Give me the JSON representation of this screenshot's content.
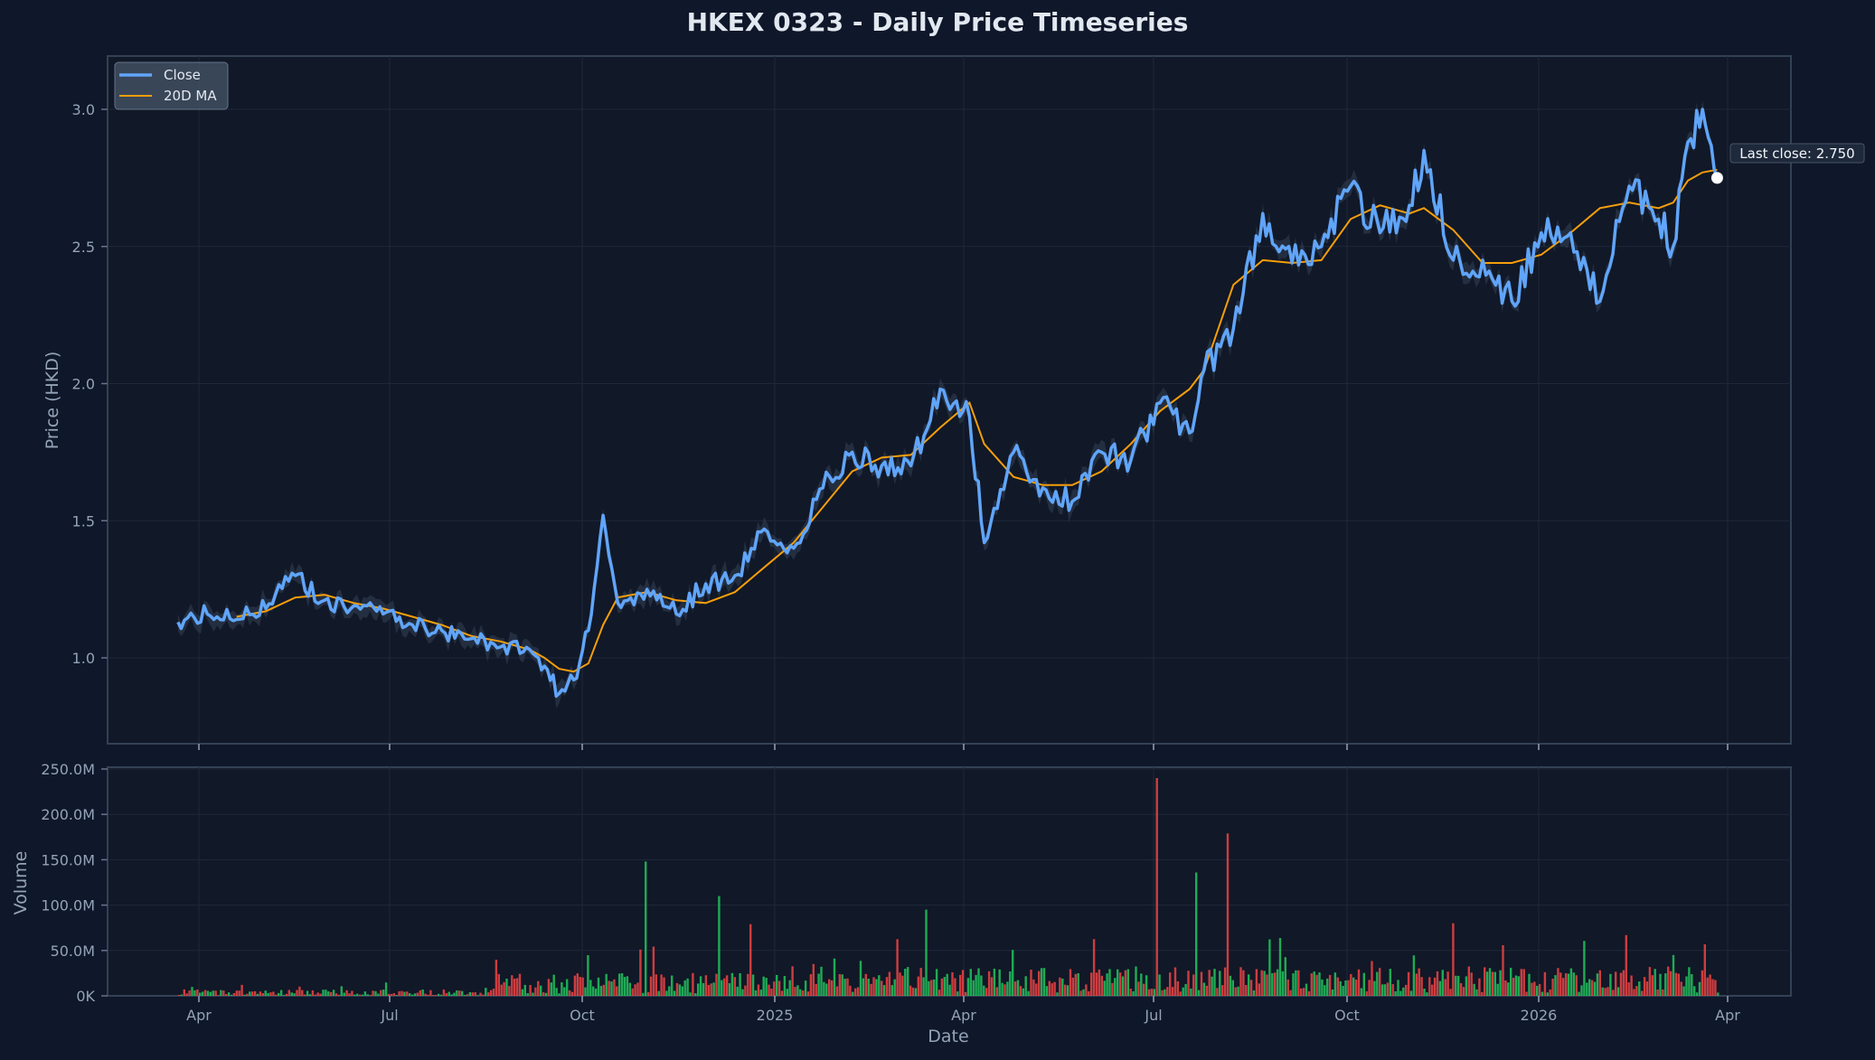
{
  "title": "HKEX 0323 - Daily Price Timeseries",
  "colors": {
    "background": "#0f172a",
    "plot_bg": "#111827",
    "close": "#60a5fa",
    "ma": "#f59e0b",
    "band": "#334155",
    "vol_up": "#22c55e",
    "vol_down": "#ef4444",
    "grid": "#1e293b",
    "spine": "#334155"
  },
  "legend": {
    "close_label": "Close",
    "ma_label": "20D MA"
  },
  "annotation": {
    "label": "Last close: 2.750"
  },
  "price_axis": {
    "label": "Price (HKD)",
    "ticks": [
      "1.0",
      "1.5",
      "2.0",
      "2.5",
      "3.0"
    ]
  },
  "volume_axis": {
    "label": "Volume",
    "ticks": [
      "0K",
      "50.0M",
      "100.0M",
      "150.0M",
      "200.0M",
      "250.0M"
    ]
  },
  "x_axis": {
    "label": "Date",
    "ticks": [
      "Apr",
      "Jul",
      "Oct",
      "2025",
      "Apr",
      "Jul",
      "Oct",
      "2026",
      "Apr"
    ]
  },
  "chart_data": [
    {
      "type": "line",
      "title": "HKEX 0323 - Daily Price Timeseries",
      "xlabel": "Date",
      "ylabel": "Price (HKD)",
      "ylim": [
        0.69,
        3.2
      ],
      "x_ticks": [
        "Apr 2024",
        "Jul 2024",
        "Oct 2024",
        "2025",
        "Apr 2025",
        "Jul 2025",
        "Oct 2025",
        "2026",
        "Apr 2026"
      ],
      "legend_position": "upper left",
      "grid": true,
      "x": [
        "2024-03-22",
        "2024-04-05",
        "2024-04-19",
        "2024-05-03",
        "2024-05-17",
        "2024-05-31",
        "2024-06-14",
        "2024-06-28",
        "2024-07-12",
        "2024-07-26",
        "2024-08-09",
        "2024-08-23",
        "2024-09-06",
        "2024-09-13",
        "2024-09-20",
        "2024-09-27",
        "2024-10-04",
        "2024-10-11",
        "2024-10-18",
        "2024-11-01",
        "2024-11-15",
        "2024-11-29",
        "2024-12-13",
        "2024-12-27",
        "2025-01-10",
        "2025-01-24",
        "2025-02-07",
        "2025-02-21",
        "2025-03-07",
        "2025-03-21",
        "2025-04-04",
        "2025-04-11",
        "2025-04-25",
        "2025-05-09",
        "2025-05-23",
        "2025-06-06",
        "2025-06-20",
        "2025-07-04",
        "2025-07-18",
        "2025-07-25",
        "2025-08-08",
        "2025-08-22",
        "2025-09-05",
        "2025-09-19",
        "2025-10-03",
        "2025-10-17",
        "2025-10-31",
        "2025-11-07",
        "2025-11-21",
        "2025-12-05",
        "2025-12-19",
        "2026-01-02",
        "2026-01-16",
        "2026-01-30",
        "2026-02-13",
        "2026-02-27",
        "2026-03-06",
        "2026-03-13",
        "2026-03-20",
        "2026-03-27"
      ],
      "series": [
        {
          "name": "Close",
          "values": [
            1.13,
            1.16,
            1.14,
            1.18,
            1.3,
            1.21,
            1.19,
            1.16,
            1.12,
            1.1,
            1.07,
            1.04,
            1.03,
            0.97,
            0.87,
            0.92,
            1.1,
            1.52,
            1.2,
            1.25,
            1.16,
            1.27,
            1.3,
            1.47,
            1.4,
            1.62,
            1.75,
            1.7,
            1.7,
            1.98,
            1.88,
            1.42,
            1.75,
            1.62,
            1.57,
            1.75,
            1.72,
            1.93,
            1.82,
            2.05,
            2.2,
            2.62,
            2.44,
            2.5,
            2.72,
            2.55,
            2.65,
            2.85,
            2.45,
            2.45,
            2.3,
            2.55,
            2.55,
            2.3,
            2.72,
            2.6,
            2.5,
            2.88,
            3.0,
            2.75
          ]
        },
        {
          "name": "20D MA",
          "values": [
            null,
            null,
            1.15,
            1.17,
            1.22,
            1.23,
            1.2,
            1.18,
            1.15,
            1.12,
            1.08,
            1.06,
            1.03,
            1.0,
            0.96,
            0.95,
            0.98,
            1.12,
            1.22,
            1.24,
            1.21,
            1.2,
            1.24,
            1.33,
            1.42,
            1.55,
            1.68,
            1.73,
            1.74,
            1.84,
            1.93,
            1.78,
            1.66,
            1.63,
            1.63,
            1.68,
            1.78,
            1.9,
            1.98,
            2.05,
            2.36,
            2.45,
            2.44,
            2.45,
            2.6,
            2.65,
            2.62,
            2.64,
            2.56,
            2.44,
            2.44,
            2.47,
            2.55,
            2.64,
            2.66,
            2.64,
            2.66,
            2.74,
            2.77,
            2.78
          ]
        }
      ],
      "annotations": [
        "Last close: 2.750"
      ]
    },
    {
      "type": "bar",
      "ylabel": "Volume",
      "xlabel": "Date",
      "ylim": [
        0,
        250000000
      ],
      "y_ticks": [
        "0K",
        "50.0M",
        "100.0M",
        "150.0M",
        "200.0M",
        "250.0M"
      ],
      "series": [
        {
          "name": "Volume (up)",
          "color": "#22c55e"
        },
        {
          "name": "Volume (down)",
          "color": "#ef4444"
        }
      ],
      "notable_peaks": [
        {
          "date": "2024-10-31",
          "value": 148000000
        },
        {
          "date": "2024-12-05",
          "value": 110000000
        },
        {
          "date": "2024-12-20",
          "value": 79000000
        },
        {
          "date": "2025-03-14",
          "value": 95000000
        },
        {
          "date": "2025-07-02",
          "value": 240000000
        },
        {
          "date": "2025-07-21",
          "value": 136000000
        },
        {
          "date": "2025-08-05",
          "value": 179000000
        },
        {
          "date": "2025-11-20",
          "value": 80000000
        },
        {
          "date": "2026-03-06",
          "value": 45000000
        }
      ]
    }
  ]
}
